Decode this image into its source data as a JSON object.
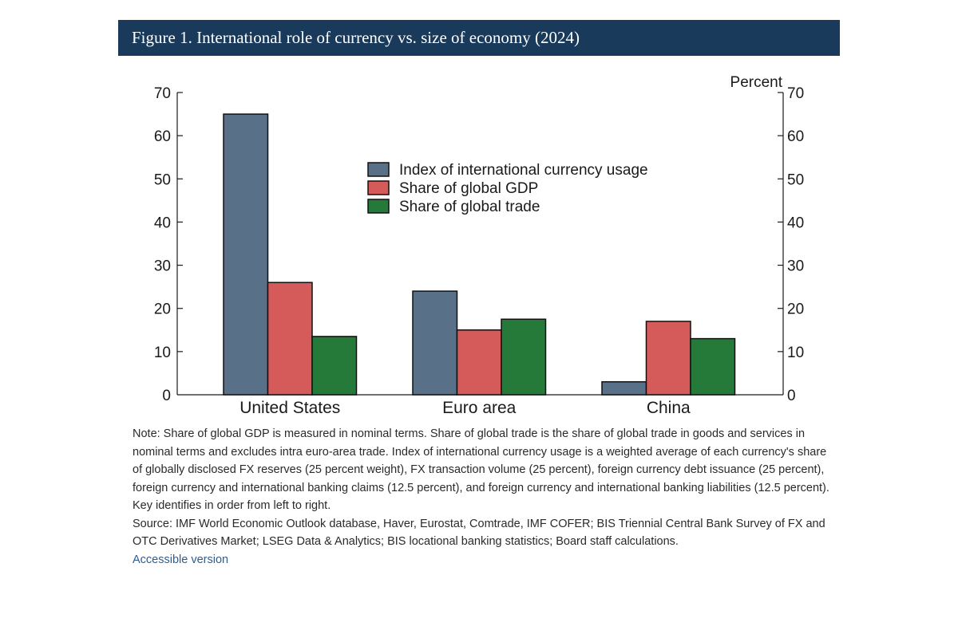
{
  "figure": {
    "title": "Figure 1. International role of currency vs. size of economy (2024)"
  },
  "colors": {
    "title_bg": "#193a5a",
    "series": [
      "#587088",
      "#d55a5a",
      "#257a3a"
    ],
    "link": "#2f5d8c"
  },
  "chart_data": {
    "type": "bar",
    "title": "International role of currency vs. size of economy (2024)",
    "xlabel": "",
    "ylabel": "",
    "unit_label": "Percent",
    "ylim": [
      0,
      70
    ],
    "yticks": [
      0,
      10,
      20,
      30,
      40,
      50,
      60,
      70
    ],
    "grid": false,
    "legend_position": "center-top",
    "categories": [
      "United States",
      "Euro area",
      "China"
    ],
    "series": [
      {
        "name": "Index of international currency usage",
        "values": [
          65,
          24,
          3
        ]
      },
      {
        "name": "Share of global GDP",
        "values": [
          26,
          15,
          17
        ]
      },
      {
        "name": "Share of global trade",
        "values": [
          13.5,
          17.5,
          13
        ]
      }
    ]
  },
  "notes": {
    "note": "Note: Share of global GDP is measured in nominal terms. Share of global trade is the share of global trade in goods and services in nominal terms and excludes intra euro-area trade. Index of international currency usage is a weighted average of each currency's share of globally disclosed FX reserves (25 percent weight), FX transaction volume (25 percent), foreign currency debt issuance (25 percent), foreign currency and international banking claims (12.5 percent), and foreign currency and international banking liabilities (12.5 percent). Key identifies in order from left to right.",
    "source": "Source: IMF World Economic Outlook database, Haver, Eurostat, Comtrade, IMF COFER; BIS Triennial Central Bank Survey of FX and OTC Derivatives Market; LSEG Data & Analytics; BIS locational banking statistics; Board staff calculations.",
    "accessible_link": "Accessible version"
  }
}
